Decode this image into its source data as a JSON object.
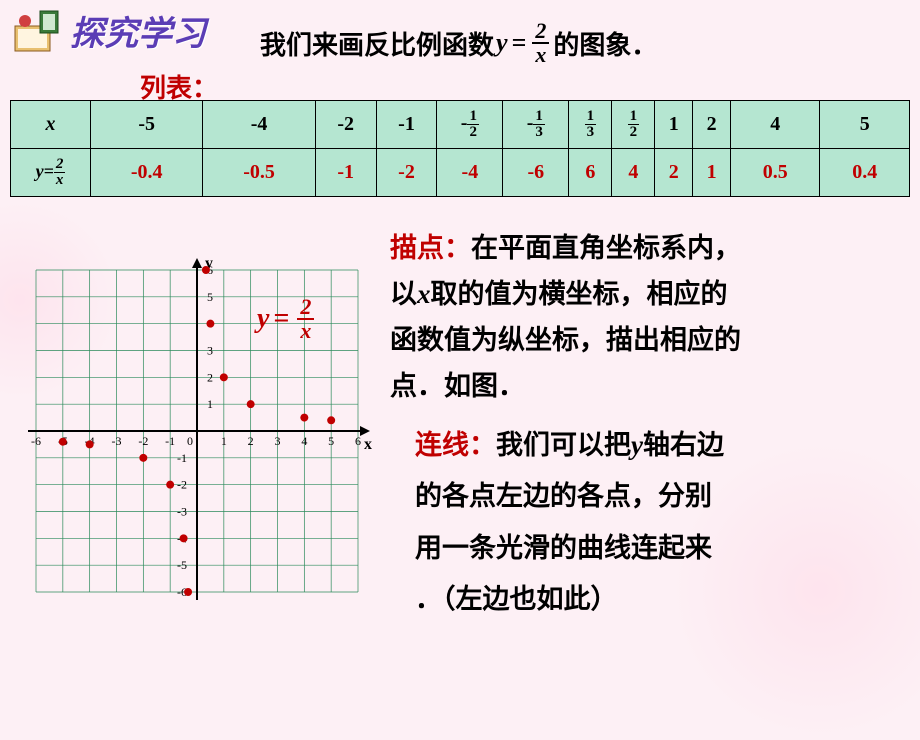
{
  "header": {
    "title": "探究学习"
  },
  "intro": {
    "prefix": "我们来画反比例函数 ",
    "eq_lhs": "y",
    "eq_eq": "=",
    "eq_num": "2",
    "eq_den": "x",
    "suffix": " 的图象．"
  },
  "list_label": "列表：",
  "table": {
    "row1_hdr": "x",
    "row1": [
      "-5",
      "-4",
      "-2",
      "-1",
      "-1/2",
      "-1/3",
      "1/3",
      "1/2",
      "1",
      "2",
      "4",
      "5"
    ],
    "row2_hdr_lhs": "y",
    "row2_hdr_num": "2",
    "row2_hdr_den": "x",
    "row2": [
      "-0.4",
      "-0.5",
      "-1",
      "-2",
      "-4",
      "-6",
      "6",
      "4",
      "2",
      "1",
      "0.5",
      "0.4"
    ],
    "cell_bg": "#b5e6d1",
    "value_color": "#c00000"
  },
  "chart": {
    "xmin": -6,
    "xmax": 6,
    "ymin": -6,
    "ymax": 6,
    "grid_color": "#2a8a5a",
    "axis_color": "#000000",
    "point_color": "#c00000",
    "points": [
      [
        -5,
        -0.4
      ],
      [
        -4,
        -0.5
      ],
      [
        -2,
        -1
      ],
      [
        -1,
        -2
      ],
      [
        -0.5,
        -4
      ],
      [
        -0.333,
        -6
      ],
      [
        0.333,
        6
      ],
      [
        0.5,
        4
      ],
      [
        1,
        2
      ],
      [
        2,
        1
      ],
      [
        4,
        0.5
      ],
      [
        5,
        0.4
      ]
    ],
    "eq_label": {
      "lhs": "y",
      "eq": "=",
      "num": "2",
      "den": "x"
    }
  },
  "desc1": {
    "label": "描点：",
    "body1": "在平面直角坐标系内，",
    "body2": "以",
    "body2b": "x",
    "body2c": "取的值为横坐标，相应的",
    "body3": "函数值为纵坐标，描出相应的",
    "body4": "点．如图．"
  },
  "desc2": {
    "label": "连线：",
    "body1": "我们可以把",
    "body1b": "y",
    "body1c": "轴右边",
    "body2": "的各点左边的各点，分别",
    "body3": "用一条光滑的曲线连起来",
    "body4": "．（左边也如此）"
  },
  "colors": {
    "page_bg": "#fdf0f5",
    "red": "#c00000",
    "header_purple": "#5b3db5"
  }
}
